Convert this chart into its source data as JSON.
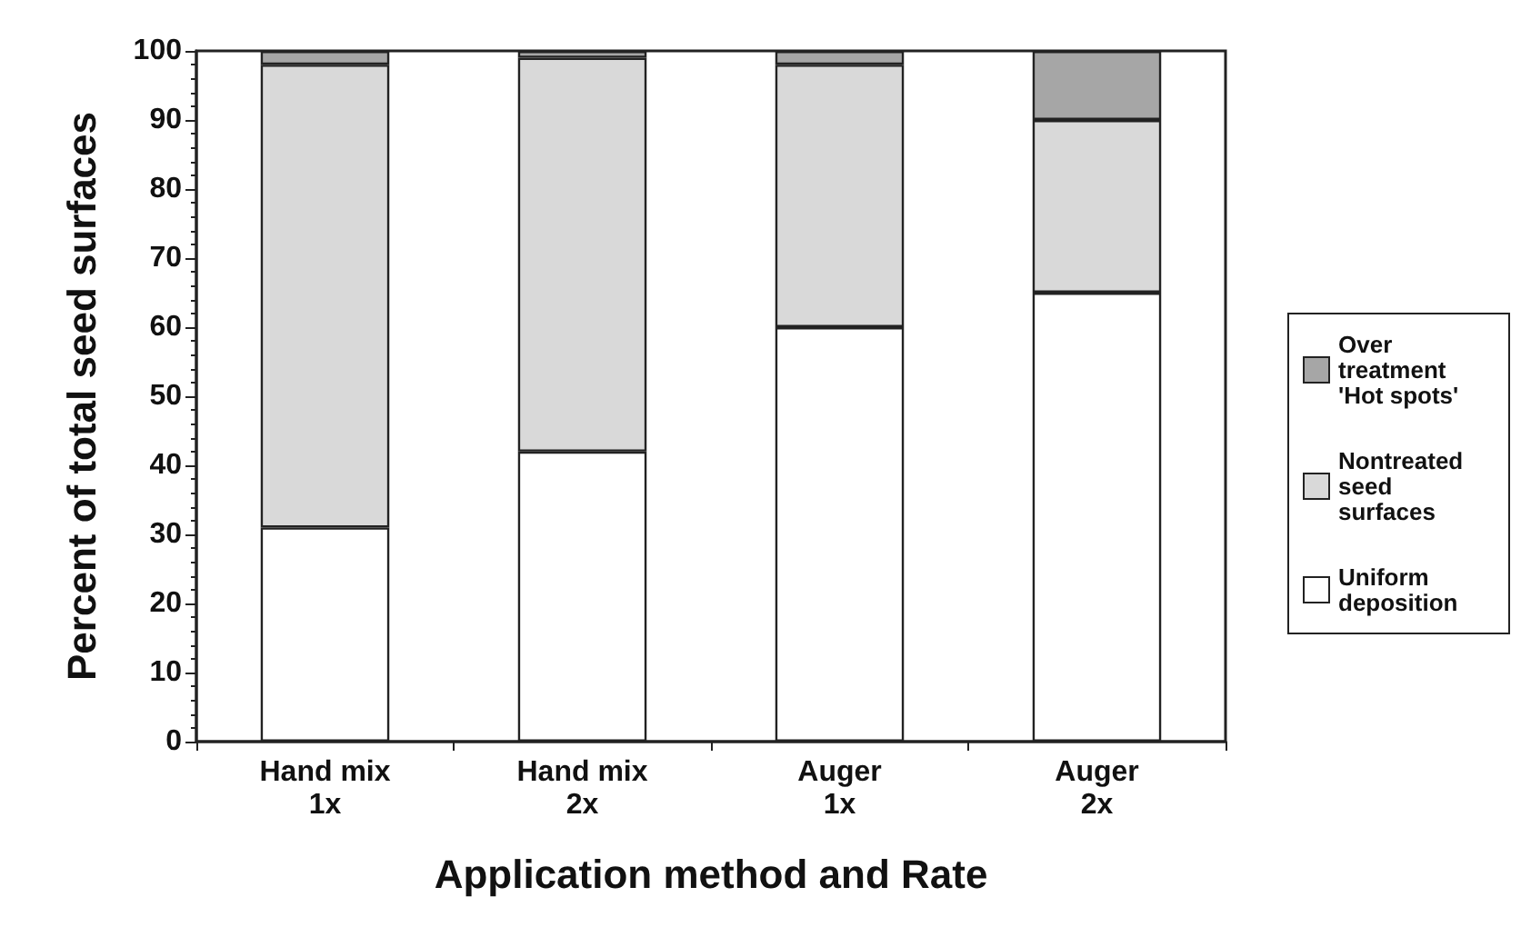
{
  "chart_data": {
    "type": "bar",
    "stacked": true,
    "xlabel": "Application method and Rate",
    "ylabel": "Percent of total seed surfaces",
    "categories": [
      "Hand mix\n1x",
      "Hand mix\n2x",
      "Auger\n1x",
      "Auger\n2x"
    ],
    "series": [
      {
        "name": "Uniform deposition",
        "color": "#ffffff",
        "values": [
          31,
          42,
          60,
          65
        ]
      },
      {
        "name": "Nontreated seed surfaces",
        "color": "#d9d9d9",
        "values": [
          67,
          57,
          38,
          25
        ]
      },
      {
        "name": "Over treatment 'Hot spots'",
        "color": "#a6a6a6",
        "values": [
          2,
          1,
          2,
          10
        ]
      }
    ],
    "ylim": [
      0,
      100
    ],
    "yticks": [
      0,
      10,
      20,
      30,
      40,
      50,
      60,
      70,
      80,
      90,
      100
    ],
    "grid": false,
    "legend": "right"
  }
}
